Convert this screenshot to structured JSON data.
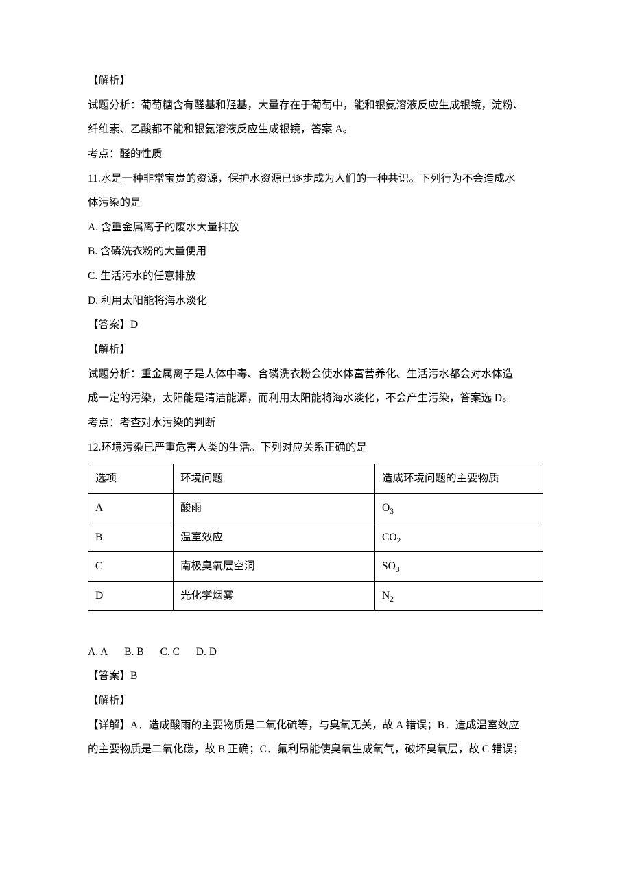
{
  "q10": {
    "analysis_label": "【解析】",
    "analysis_line1": "试题分析：葡萄糖含有醛基和羟基，大量存在于葡萄中，能和银氨溶液反应生成银镜，淀粉、",
    "analysis_line2": "纤维素、乙酸都不能和银氨溶液反应生成银镜，答案 A。",
    "kaodian": "考点：醛的性质"
  },
  "q11": {
    "stem_line1": "11.水是一种非常宝贵的资源，保护水资源已逐步成为人们的一种共识。下列行为不会造成水",
    "stem_line2": "体污染的是",
    "opt_a": "A. 含重金属离子的废水大量排放",
    "opt_b": "B. 含磷洗衣粉的大量使用",
    "opt_c": "C. 生活污水的任意排放",
    "opt_d": "D. 利用太阳能将海水淡化",
    "answer": "【答案】D",
    "analysis_label": "【解析】",
    "analysis_line1": "试题分析：重金属离子是人体中毒、含磷洗衣粉会使水体富营养化、生活污水都会对水体造",
    "analysis_line2": "成一定的污染，太阳能是清洁能源，而利用太阳能将海水淡化，不会产生污染，答案选 D。",
    "kaodian": "考点：考查对水污染的判断"
  },
  "q12": {
    "stem": "12.环境污染已严重危害人类的生活。下列对应关系正确的是",
    "table": {
      "col_headers": {
        "opt": "选项",
        "issue": "环境问题",
        "cause": "造成环境问题的主要物质"
      },
      "rows": [
        {
          "opt": "A",
          "issue": "酸雨",
          "cause_base": "O",
          "cause_sub": "3"
        },
        {
          "opt": "B",
          "issue": "温室效应",
          "cause_base": "CO",
          "cause_sub": "2"
        },
        {
          "opt": "C",
          "issue": "南极臭氧层空洞",
          "cause_base": "SO",
          "cause_sub": "3"
        },
        {
          "opt": "D",
          "issue": "光化学烟雾",
          "cause_base": "N",
          "cause_sub": "2"
        }
      ]
    },
    "choices": {
      "a": "A. A",
      "b": "B. B",
      "c": "C. C",
      "d": "D. D"
    },
    "answer": "【答案】B",
    "analysis_label": "【解析】",
    "detail_line1": "【详解】A．造成酸雨的主要物质是二氧化硫等，与臭氧无关，故 A 错误；B．造成温室效应",
    "detail_line2": "的主要物质是二氧化碳，故 B 正确；C．氟利昂能使臭氧生成氧气，破坏臭氧层，故 C 错误；"
  }
}
